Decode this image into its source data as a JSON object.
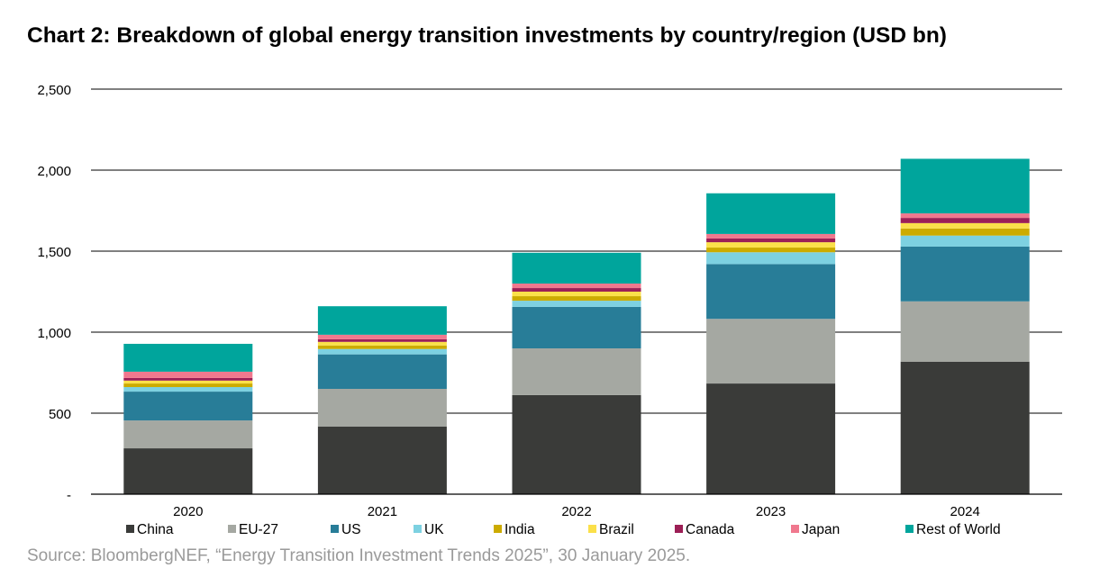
{
  "title": "Chart 2: Breakdown of global energy transition investments by country/region (USD bn)",
  "source": "Source: BloombergNEF, “Energy Transition Investment Trends 2025”, 30 January 2025.",
  "chart_data": {
    "type": "bar",
    "stacked": true,
    "categories": [
      "2020",
      "2021",
      "2022",
      "2023",
      "2024"
    ],
    "ylim": [
      0,
      2500
    ],
    "yticks": [
      0,
      500,
      1000,
      1500,
      2000,
      2500
    ],
    "ytick_labels": [
      "-",
      "500",
      "1,000",
      "1,500",
      "2,000",
      "2,500"
    ],
    "grid": true,
    "legend_position": "bottom",
    "series": [
      {
        "name": "China",
        "color": "#3a3b39",
        "values": [
          283,
          418,
          612,
          683,
          818
        ]
      },
      {
        "name": "EU-27",
        "color": "#a5a8a2",
        "values": [
          172,
          232,
          288,
          399,
          372
        ]
      },
      {
        "name": "US",
        "color": "#287d98",
        "values": [
          178,
          213,
          256,
          338,
          338
        ]
      },
      {
        "name": "UK",
        "color": "#7dd1e1",
        "values": [
          28,
          33,
          38,
          73,
          68
        ]
      },
      {
        "name": "India",
        "color": "#ccab00",
        "values": [
          22,
          22,
          28,
          29,
          44
        ]
      },
      {
        "name": "Brazil",
        "color": "#fbe04a",
        "values": [
          18,
          22,
          28,
          33,
          33
        ]
      },
      {
        "name": "Canada",
        "color": "#9c1f56",
        "values": [
          16,
          16,
          22,
          23,
          32
        ]
      },
      {
        "name": "Japan",
        "color": "#f0788e",
        "values": [
          39,
          28,
          28,
          28,
          28
        ]
      },
      {
        "name": "Rest of World",
        "color": "#00a59c",
        "values": [
          172,
          176,
          190,
          251,
          337
        ]
      }
    ]
  }
}
